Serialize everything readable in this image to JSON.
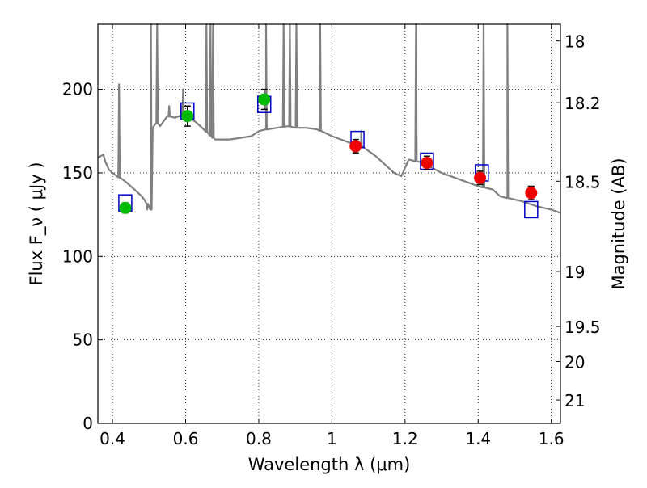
{
  "chart_data": {
    "type": "scatter",
    "title": "",
    "xlabel": "Wavelength λ (μm)",
    "ylabel": "Flux F_ν ( μJy )",
    "y2label": "Magnitude (AB)",
    "xlim": [
      0.36,
      1.625
    ],
    "ylim": [
      0,
      239
    ],
    "grid": true,
    "xticks": [
      0.4,
      0.6,
      0.8,
      1.0,
      1.2,
      1.4,
      1.6
    ],
    "xtick_labels": [
      "0.4",
      "0.6",
      "0.8",
      "1",
      "1.2",
      "1.4",
      "1.6"
    ],
    "yticks": [
      0,
      50,
      100,
      150,
      200
    ],
    "yticks_right": [
      {
        "label": "18",
        "flux": 229
      },
      {
        "label": "18.2",
        "flux": 192
      },
      {
        "label": "18.5",
        "flux": 145
      },
      {
        "label": "19",
        "flux": 91
      },
      {
        "label": "19.5",
        "flux": 58
      },
      {
        "label": "20",
        "flux": 37
      },
      {
        "label": "21",
        "flux": 14
      }
    ],
    "colors": {
      "model": "#808080",
      "optical": "#00bb00",
      "nir": "#ee0000",
      "synthetic": "#0000cc",
      "errorbar": "#000000"
    },
    "model_spectrum": {
      "name": "",
      "x": [
        0.36,
        0.375,
        0.38,
        0.39,
        0.4,
        0.42,
        0.44,
        0.46,
        0.48,
        0.49,
        0.5,
        0.505,
        0.51,
        0.52,
        0.53,
        0.55,
        0.57,
        0.6,
        0.63,
        0.65,
        0.68,
        0.7,
        0.72,
        0.75,
        0.78,
        0.8,
        0.82,
        0.85,
        0.88,
        0.9,
        0.93,
        0.96,
        1.0,
        1.05,
        1.08,
        1.12,
        1.15,
        1.17,
        1.19,
        1.21,
        1.25,
        1.3,
        1.35,
        1.4,
        1.44,
        1.46,
        1.48,
        1.52,
        1.56,
        1.6,
        1.625
      ],
      "y": [
        159,
        161,
        157,
        152,
        150,
        147,
        144,
        140,
        136,
        133,
        130,
        128,
        177,
        180,
        178,
        184,
        183,
        185,
        180,
        176,
        170,
        170,
        170,
        171,
        172,
        175,
        176,
        177,
        178,
        177,
        177,
        176,
        172,
        168,
        166,
        160,
        154,
        150,
        148,
        158,
        156,
        150,
        146,
        142,
        140,
        136,
        135,
        133,
        130,
        128,
        126
      ],
      "spikes": [
        {
          "x": 0.418,
          "y": 203
        },
        {
          "x": 0.495,
          "y": 128
        },
        {
          "x": 0.505,
          "y": 239
        },
        {
          "x": 0.522,
          "y": 239
        },
        {
          "x": 0.555,
          "y": 190
        },
        {
          "x": 0.593,
          "y": 200
        },
        {
          "x": 0.657,
          "y": 239
        },
        {
          "x": 0.668,
          "y": 239
        },
        {
          "x": 0.675,
          "y": 239
        },
        {
          "x": 0.82,
          "y": 239
        },
        {
          "x": 0.868,
          "y": 239
        },
        {
          "x": 0.885,
          "y": 239
        },
        {
          "x": 0.903,
          "y": 239
        },
        {
          "x": 0.968,
          "y": 239
        },
        {
          "x": 1.08,
          "y": 175
        },
        {
          "x": 1.23,
          "y": 239
        },
        {
          "x": 1.415,
          "y": 239
        },
        {
          "x": 1.48,
          "y": 239
        }
      ]
    },
    "series": [
      {
        "x": [
          0.435,
          0.605,
          0.815
        ],
        "values": [
          129,
          184,
          194
        ],
        "yerr": [
          3,
          6,
          6
        ]
      },
      {
        "x": [
          1.065,
          1.26,
          1.405,
          1.545
        ],
        "values": [
          166,
          156,
          147,
          138
        ],
        "yerr": [
          4,
          4,
          4,
          4
        ]
      },
      {
        "x": [
          0.435,
          0.605,
          0.815,
          1.07,
          1.26,
          1.41,
          1.545
        ],
        "values": [
          132,
          187,
          191,
          170,
          157,
          150,
          128
        ]
      }
    ]
  }
}
